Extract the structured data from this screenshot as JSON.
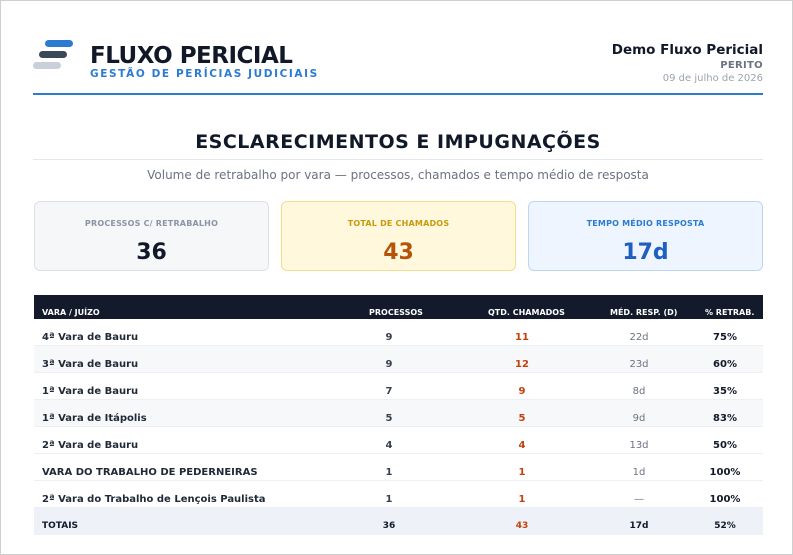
{
  "brand": {
    "title": "FLUXO PERICIAL",
    "subtitle": "GESTÃO DE PERÍCIAS JUDICIAIS"
  },
  "user": {
    "name": "Demo Fluxo Pericial",
    "role": "PERITO",
    "date": "09 de julho de 2026"
  },
  "section": {
    "title": "ESCLARECIMENTOS E IMPUGNAÇÕES",
    "subtitle": "Volume de retrabalho por vara — processos, chamados e tempo médio de resposta"
  },
  "cards": [
    {
      "label": "PROCESSOS C/ RETRABALHO",
      "value": "36"
    },
    {
      "label": "TOTAL DE CHAMADOS",
      "value": "43"
    },
    {
      "label": "TEMPO MÉDIO RESPOSTA",
      "value": "17d"
    }
  ],
  "table": {
    "headers": [
      "VARA / JUÍZO",
      "PROCESSOS",
      "QTD. CHAMADOS",
      "MÉD. RESP. (D)",
      "% RETRAB."
    ],
    "rows": [
      [
        "4ª Vara de Bauru",
        "9",
        "11",
        "22d",
        "75%"
      ],
      [
        "3ª Vara de Bauru",
        "9",
        "12",
        "23d",
        "60%"
      ],
      [
        "1ª Vara de Bauru",
        "7",
        "9",
        "8d",
        "35%"
      ],
      [
        "1ª Vara de Itápolis",
        "5",
        "5",
        "9d",
        "83%"
      ],
      [
        "2ª Vara de Bauru",
        "4",
        "4",
        "13d",
        "50%"
      ],
      [
        "VARA DO TRABALHO DE PEDERNEIRAS",
        "1",
        "1",
        "1d",
        "100%"
      ],
      [
        "2ª Vara do Trabalho de Lençois Paulista",
        "1",
        "1",
        "—",
        "100%"
      ]
    ],
    "totals": [
      "TOTAIS",
      "36",
      "43",
      "17d",
      "52%"
    ]
  },
  "colors": {
    "accent": "#2b7bd1",
    "header_bg": "#121a2b",
    "chamados": "#c2410c"
  }
}
